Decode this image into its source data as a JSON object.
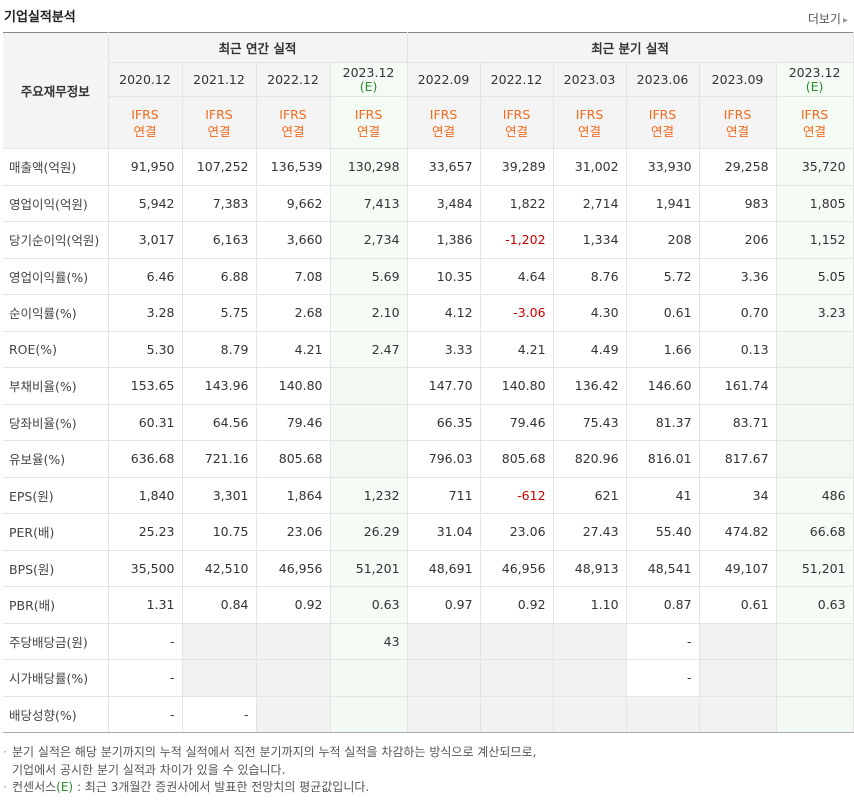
{
  "header": {
    "title": "기업실적분석",
    "more_label": "더보기",
    "more_arrow": "▸"
  },
  "table": {
    "main_label": "주요재무정보",
    "group_annual": "최근 연간 실적",
    "group_quarter": "최근 분기 실적",
    "columns": [
      {
        "period": "2020.12",
        "est": ""
      },
      {
        "period": "2021.12",
        "est": ""
      },
      {
        "period": "2022.12",
        "est": ""
      },
      {
        "period": "2023.12",
        "est": "(E)"
      },
      {
        "period": "2022.09",
        "est": ""
      },
      {
        "period": "2022.12",
        "est": ""
      },
      {
        "period": "2023.03",
        "est": ""
      },
      {
        "period": "2023.06",
        "est": ""
      },
      {
        "period": "2023.09",
        "est": ""
      },
      {
        "period": "2023.12",
        "est": "(E)"
      }
    ],
    "ifrs_line1": "IFRS",
    "ifrs_line2": "연결",
    "rows": [
      {
        "label": "매출액(억원)",
        "values": [
          "91,950",
          "107,252",
          "136,539",
          "130,298",
          "33,657",
          "39,289",
          "31,002",
          "33,930",
          "29,258",
          "35,720"
        ]
      },
      {
        "label": "영업이익(억원)",
        "values": [
          "5,942",
          "7,383",
          "9,662",
          "7,413",
          "3,484",
          "1,822",
          "2,714",
          "1,941",
          "983",
          "1,805"
        ]
      },
      {
        "label": "당기순이익(억원)",
        "values": [
          "3,017",
          "6,163",
          "3,660",
          "2,734",
          "1,386",
          "-1,202",
          "1,334",
          "208",
          "206",
          "1,152"
        ]
      },
      {
        "label": "영업이익률(%)",
        "values": [
          "6.46",
          "6.88",
          "7.08",
          "5.69",
          "10.35",
          "4.64",
          "8.76",
          "5.72",
          "3.36",
          "5.05"
        ]
      },
      {
        "label": "순이익률(%)",
        "values": [
          "3.28",
          "5.75",
          "2.68",
          "2.10",
          "4.12",
          "-3.06",
          "4.30",
          "0.61",
          "0.70",
          "3.23"
        ]
      },
      {
        "label": "ROE(%)",
        "values": [
          "5.30",
          "8.79",
          "4.21",
          "2.47",
          "3.33",
          "4.21",
          "4.49",
          "1.66",
          "0.13",
          ""
        ]
      },
      {
        "label": "부채비율(%)",
        "values": [
          "153.65",
          "143.96",
          "140.80",
          "",
          "147.70",
          "140.80",
          "136.42",
          "146.60",
          "161.74",
          ""
        ]
      },
      {
        "label": "당좌비율(%)",
        "values": [
          "60.31",
          "64.56",
          "79.46",
          "",
          "66.35",
          "79.46",
          "75.43",
          "81.37",
          "83.71",
          ""
        ]
      },
      {
        "label": "유보율(%)",
        "values": [
          "636.68",
          "721.16",
          "805.68",
          "",
          "796.03",
          "805.68",
          "820.96",
          "816.01",
          "817.67",
          ""
        ]
      },
      {
        "label": "EPS(원)",
        "values": [
          "1,840",
          "3,301",
          "1,864",
          "1,232",
          "711",
          "-612",
          "621",
          "41",
          "34",
          "486"
        ]
      },
      {
        "label": "PER(배)",
        "values": [
          "25.23",
          "10.75",
          "23.06",
          "26.29",
          "31.04",
          "23.06",
          "27.43",
          "55.40",
          "474.82",
          "66.68"
        ]
      },
      {
        "label": "BPS(원)",
        "values": [
          "35,500",
          "42,510",
          "46,956",
          "51,201",
          "48,691",
          "46,956",
          "48,913",
          "48,541",
          "49,107",
          "51,201"
        ]
      },
      {
        "label": "PBR(배)",
        "values": [
          "1.31",
          "0.84",
          "0.92",
          "0.63",
          "0.97",
          "0.92",
          "1.10",
          "0.87",
          "0.61",
          "0.63"
        ]
      },
      {
        "label": "주당배당금(원)",
        "values": [
          "-",
          "",
          "",
          "43",
          "",
          "",
          "",
          "-",
          "",
          ""
        ]
      },
      {
        "label": "시가배당률(%)",
        "values": [
          "-",
          "",
          "",
          "",
          "",
          "",
          "",
          "-",
          "",
          ""
        ]
      },
      {
        "label": "배당성향(%)",
        "values": [
          "-",
          "-",
          "",
          "",
          "",
          "",
          "",
          "",
          "",
          ""
        ]
      }
    ],
    "group_breaks": [
      3,
      6,
      9,
      13
    ]
  },
  "notes": {
    "bullet": "·",
    "note1_line1": "분기 실적은 해당 분기까지의 누적 실적에서 직전 분기까지의 누적 실적을 차감하는 방식으로 계산되므로,",
    "note1_line2": "기업에서 공시한 분기 실적과 차이가 있을 수 있습니다.",
    "note2_prefix": "컨센서스",
    "note2_e": "(E)",
    "note2_suffix": " : 최근 3개월간 증권사에서 발표한 전망치의 평균값입니다."
  }
}
